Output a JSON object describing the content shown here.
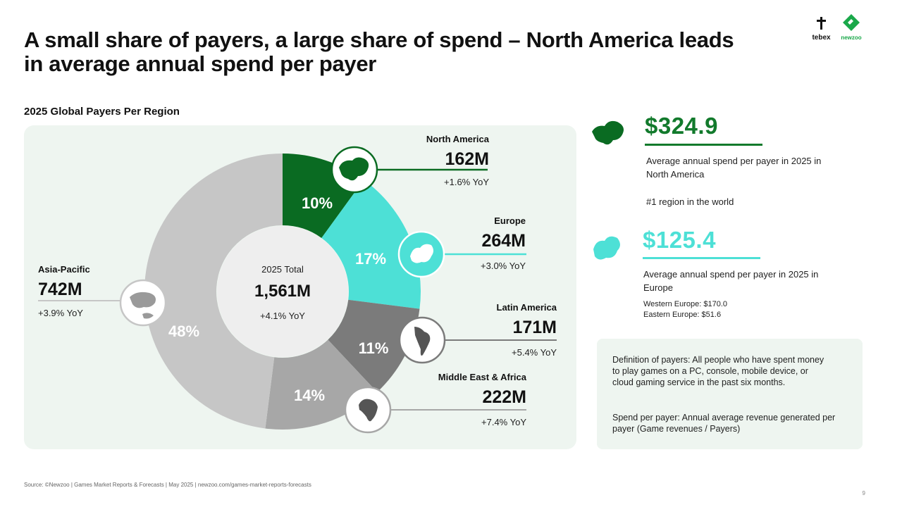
{
  "title": "A small share of payers, a large share of spend – North America leads in average annual spend per payer",
  "logos": {
    "tebex": "tebex",
    "newzoo": "newzoo"
  },
  "subtitle": "2025 Global Payers Per Region",
  "colors": {
    "north_america": "#0a6b22",
    "europe": "#4de0d6",
    "latin_america": "#7b7b7b",
    "middle_east_africa": "#a7a7a7",
    "asia_pacific": "#c6c6c6",
    "accent_green": "#127a2c"
  },
  "chart_data": {
    "type": "pie",
    "variant": "donut",
    "title": "2025 Global Payers Per Region",
    "center": {
      "label": "2025 Total",
      "value": "1,561M",
      "yoy": "+4.1% YoY"
    },
    "slices": [
      {
        "name": "North America",
        "share": 10,
        "share_label": "10%",
        "payers": "162M",
        "yoy": "+1.6% YoY",
        "icon": "north-america-map-icon"
      },
      {
        "name": "Europe",
        "share": 17,
        "share_label": "17%",
        "payers": "264M",
        "yoy": "+3.0% YoY",
        "icon": "europe-map-icon"
      },
      {
        "name": "Latin America",
        "share": 11,
        "share_label": "11%",
        "payers": "171M",
        "yoy": "+5.4% YoY",
        "icon": "latin-america-map-icon"
      },
      {
        "name": "Middle East & Africa",
        "share": 14,
        "share_label": "14%",
        "payers": "222M",
        "yoy": "+7.4% YoY",
        "icon": "africa-map-icon"
      },
      {
        "name": "Asia-Pacific",
        "share": 48,
        "share_label": "48%",
        "payers": "742M",
        "yoy": "+3.9% YoY",
        "icon": "asia-pacific-map-icon"
      }
    ]
  },
  "stats": {
    "north_america": {
      "value": "$324.9",
      "desc": "Average annual spend per payer in 2025 in North America",
      "note": "#1 region in the world"
    },
    "europe": {
      "value": "$125.4",
      "desc": "Average annual spend per payer in 2025 in Europe",
      "western": "Western Europe: $170.0",
      "eastern": "Eastern Europe: $51.6"
    }
  },
  "definitions": {
    "payers": "Definition of payers: All people who have spent money to play games on a PC, console, mobile device, or cloud gaming service in the past six months.",
    "spend": "Spend per payer: Annual average revenue generated per payer (Game revenues / Payers)"
  },
  "footer": "Source: ©Newzoo | Games Market Reports & Forecasts | May 2025 | newzoo.com/games-market-reports-forecasts",
  "page_number": "9"
}
